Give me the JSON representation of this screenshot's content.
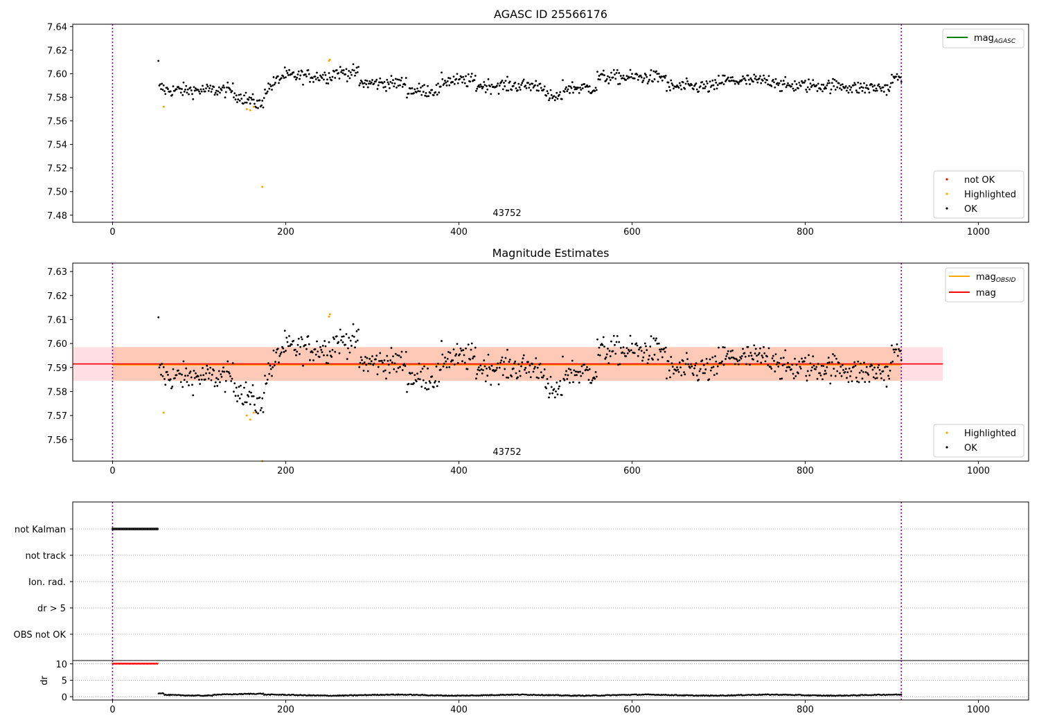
{
  "chart_data": [
    {
      "type": "scatter",
      "title": "AGASC ID 25566176",
      "xlim": [
        -46,
        1058
      ],
      "ylim": [
        7.474,
        7.642
      ],
      "xticks": [
        0,
        200,
        400,
        600,
        800,
        1000
      ],
      "yticks": [
        7.48,
        7.5,
        7.52,
        7.54,
        7.56,
        7.58,
        7.6,
        7.62,
        7.64
      ],
      "ytick_labels": [
        "7.48",
        "7.50",
        "7.52",
        "7.54",
        "7.56",
        "7.58",
        "7.60",
        "7.62",
        "7.64"
      ],
      "annotation": "43752",
      "vlines": [
        0,
        911
      ],
      "line_legend": {
        "text": "mag",
        "sub": "AGASC",
        "color": "#008000"
      },
      "scatter_legend": [
        {
          "text": "not OK",
          "color": "#ff0000"
        },
        {
          "text": "Highlighted",
          "color": "#ffa500"
        },
        {
          "text": "OK",
          "color": "#000000"
        }
      ],
      "highlighted": [
        [
          59,
          7.572
        ],
        [
          155,
          7.57
        ],
        [
          159,
          7.569
        ],
        [
          163,
          7.572
        ],
        [
          173,
          7.504
        ],
        [
          250,
          7.611
        ],
        [
          251,
          7.612
        ]
      ]
    },
    {
      "type": "scatter",
      "title": "Magnitude Estimates",
      "xlim": [
        -46,
        1058
      ],
      "ylim": [
        7.551,
        7.6335
      ],
      "xticks": [
        0,
        200,
        400,
        600,
        800,
        1000
      ],
      "yticks": [
        7.56,
        7.57,
        7.58,
        7.59,
        7.6,
        7.61,
        7.62,
        7.63
      ],
      "ytick_labels": [
        "7.56",
        "7.57",
        "7.58",
        "7.59",
        "7.60",
        "7.61",
        "7.62",
        "7.63"
      ],
      "annotation": "43752",
      "vlines": [
        0,
        911
      ],
      "mag": 7.5915,
      "mag_obsid": 7.5912,
      "band": [
        7.5845,
        7.5985
      ],
      "band_xrange": [
        0,
        959
      ],
      "line_legend": [
        {
          "text": "mag",
          "sub": "OBSID",
          "color": "#ffa500"
        },
        {
          "text": "mag",
          "sub": "",
          "color": "#ff0000"
        }
      ],
      "scatter_legend": [
        {
          "text": "Highlighted",
          "color": "#ffa500"
        },
        {
          "text": "OK",
          "color": "#000000"
        }
      ],
      "highlighted": [
        [
          59,
          7.5712
        ],
        [
          155,
          7.57
        ],
        [
          159,
          7.5683
        ],
        [
          163,
          7.5712
        ],
        [
          173,
          7.551
        ],
        [
          250,
          7.6112
        ],
        [
          251,
          7.6122
        ]
      ]
    },
    {
      "type": "scatter",
      "categories": [
        "not Kalman",
        "not track",
        "Ion. rad.",
        "dr > 5",
        "OBS not OK"
      ],
      "flag_points": {
        "category": "not Kalman",
        "x_range": [
          0,
          52
        ],
        "color": "#000000"
      },
      "xlim": [
        -46,
        1058
      ],
      "vlines": [
        0,
        911
      ]
    },
    {
      "type": "scatter",
      "ylabel": "dr",
      "xlim": [
        -46,
        1058
      ],
      "ylim": [
        -1,
        11
      ],
      "yticks": [
        0,
        5,
        10
      ],
      "ytick_labels": [
        "0",
        "5",
        "10"
      ],
      "xticks": [
        0,
        200,
        400,
        600,
        800,
        1000
      ],
      "vlines": [
        0,
        911
      ],
      "clipped_points": {
        "x_range": [
          0,
          52
        ],
        "value": 10,
        "color": "#ff0000"
      },
      "series_range": [
        53,
        911
      ]
    }
  ]
}
